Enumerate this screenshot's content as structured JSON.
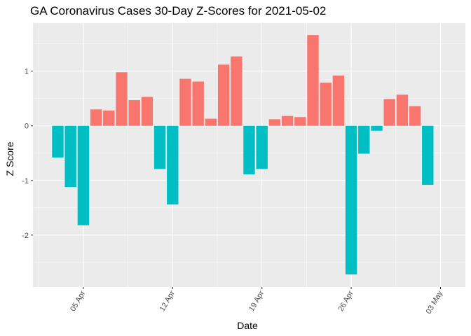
{
  "chart_data": {
    "type": "bar",
    "title": "GA Coronavirus Cases 30-Day Z-Scores for 2021-05-02",
    "xlabel": "Date",
    "ylabel": "Z Score",
    "ylim": [
      -2.95,
      1.88
    ],
    "yticks": [
      -2,
      -1,
      0,
      1
    ],
    "ytick_labels": [
      "-2",
      "-1",
      "0",
      "1"
    ],
    "xticks": [
      {
        "day": 5,
        "label": "05 Apr"
      },
      {
        "day": 12,
        "label": "12 Apr"
      },
      {
        "day": 19,
        "label": "19 Apr"
      },
      {
        "day": 26,
        "label": "26 Apr"
      },
      {
        "day": 33,
        "label": "03 May"
      }
    ],
    "xlim_days": [
      1.05,
      34.95
    ],
    "bar_width_days": 0.9,
    "colors": {
      "positive": "#F8766D",
      "negative": "#00BFC4",
      "panel": "#EBEBEB",
      "grid": "#FFFFFF",
      "tick": "#333333"
    },
    "days": [
      3,
      4,
      5,
      6,
      7,
      8,
      9,
      10,
      11,
      12,
      13,
      14,
      15,
      16,
      17,
      18,
      19,
      20,
      21,
      22,
      23,
      24,
      25,
      26,
      27,
      28,
      29,
      30,
      31,
      32
    ],
    "values": [
      -0.58,
      -1.12,
      -1.82,
      0.3,
      0.28,
      0.98,
      0.47,
      0.53,
      -0.79,
      -1.44,
      0.86,
      0.81,
      0.13,
      1.12,
      1.27,
      -0.89,
      -0.79,
      0.12,
      0.18,
      0.16,
      1.66,
      0.79,
      0.92,
      -2.72,
      -0.51,
      -0.09,
      0.49,
      0.57,
      0.36,
      -1.08
    ]
  }
}
